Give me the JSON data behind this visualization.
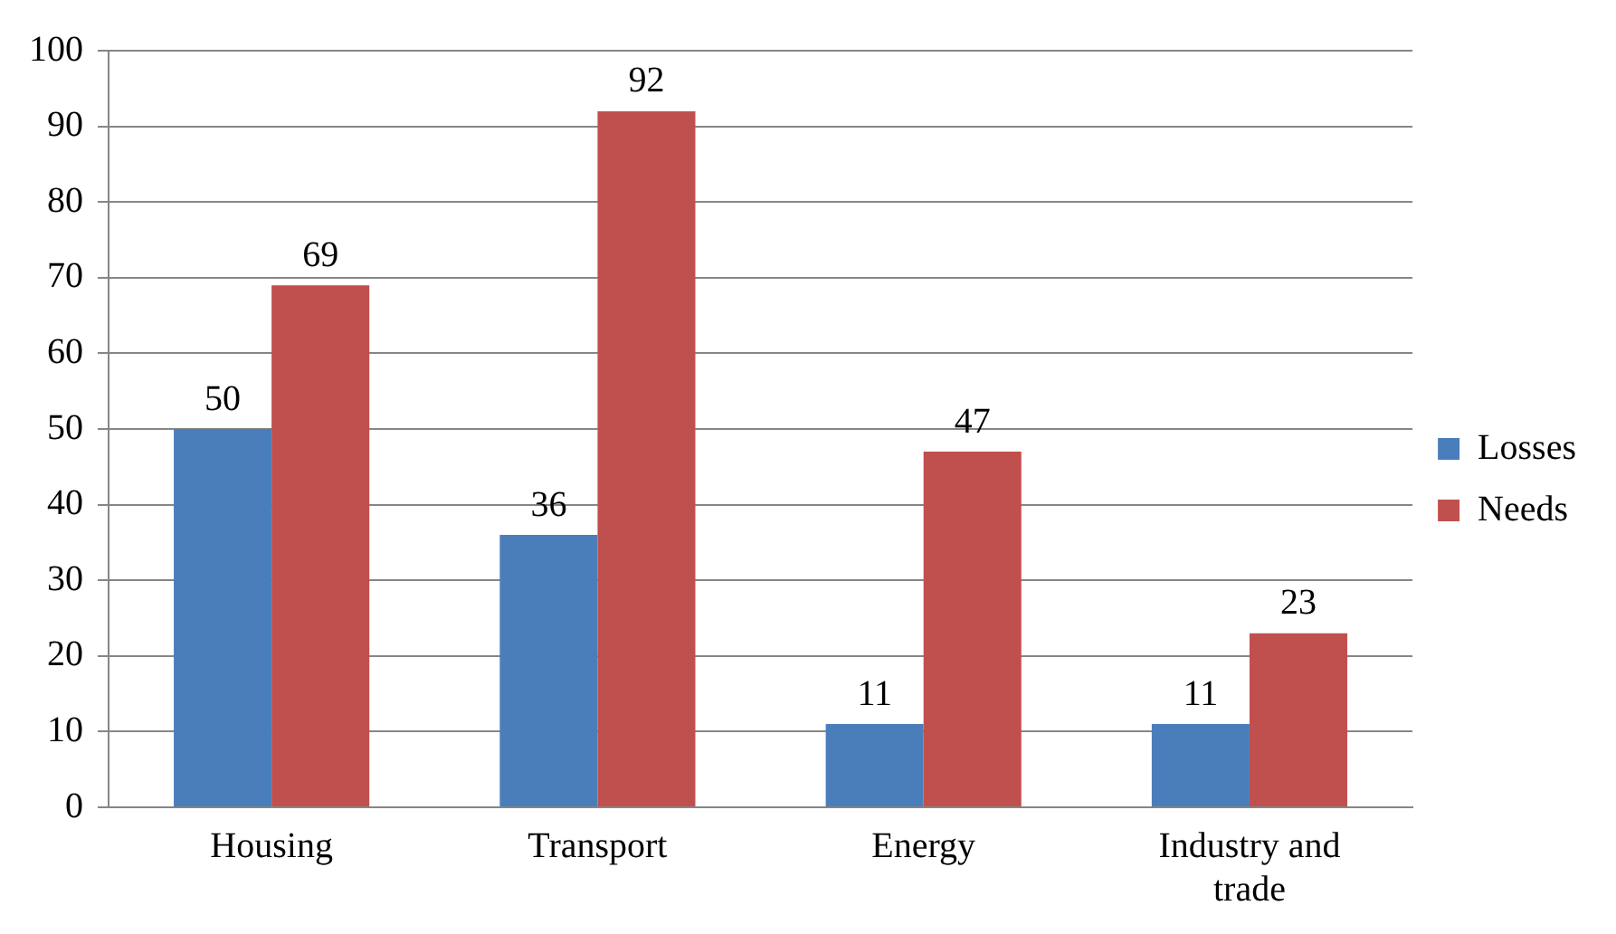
{
  "chart_data": {
    "type": "bar",
    "categories": [
      "Housing",
      "Transport",
      "Energy",
      "Industry and trade"
    ],
    "series": [
      {
        "name": "Losses",
        "color": "#4a7ebb",
        "values": [
          50,
          36,
          11,
          11
        ]
      },
      {
        "name": "Needs",
        "color": "#c0504d",
        "values": [
          69,
          92,
          47,
          23
        ]
      }
    ],
    "ylim": [
      0,
      100
    ],
    "yticks": [
      0,
      10,
      20,
      30,
      40,
      50,
      60,
      70,
      80,
      90,
      100
    ],
    "grid": "y",
    "legend": "right",
    "data_labels": true
  }
}
